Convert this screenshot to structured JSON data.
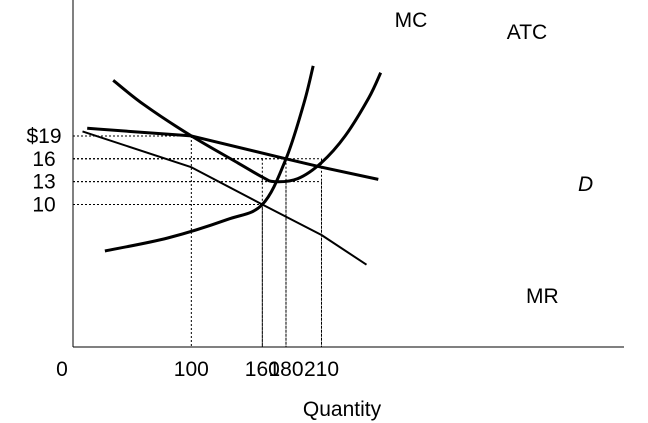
{
  "chart_data": {
    "type": "line",
    "title": "",
    "xlabel": "Quantity",
    "ylabel": "",
    "origin_label": "0",
    "grid": false,
    "x_ticks": [
      {
        "value": 100,
        "label": "100"
      },
      {
        "value": 160,
        "label": "160"
      },
      {
        "value": 180,
        "label": "180"
      },
      {
        "value": 210,
        "label": "210"
      }
    ],
    "y_ticks": [
      {
        "value": 19,
        "label": "$19"
      },
      {
        "value": 16,
        "label": "16"
      },
      {
        "value": 13,
        "label": "13"
      },
      {
        "value": 10,
        "label": "10"
      }
    ],
    "series": [
      {
        "name": "D",
        "label_style": "italic",
        "stroke": 3,
        "x": [
          12,
          100,
          180,
          210,
          258
        ],
        "y": [
          20.0,
          19.0,
          16.0,
          14.9,
          13.3
        ]
      },
      {
        "name": "MR",
        "label_style": "normal",
        "stroke": 2,
        "x": [
          8,
          100,
          160,
          210,
          248
        ],
        "y": [
          19.6,
          14.9,
          10.0,
          6.0,
          2.1
        ]
      },
      {
        "name": "MC",
        "label_style": "normal",
        "stroke": 3,
        "x": [
          27,
          80,
          130,
          160,
          180,
          195,
          203
        ],
        "y": [
          3.9,
          5.6,
          8.0,
          10.0,
          16.0,
          23.2,
          28.2
        ]
      },
      {
        "name": "ATC",
        "label_style": "normal",
        "stroke": 3,
        "x": [
          34,
          60,
          100,
          140,
          160,
          170,
          190,
          210,
          230,
          250,
          260
        ],
        "y": [
          26.3,
          23.1,
          19.0,
          15.4,
          13.6,
          13.0,
          13.4,
          15.5,
          19.0,
          24.0,
          27.3
        ]
      }
    ],
    "guides": [
      {
        "x": 100,
        "y": 19
      },
      {
        "x": 160,
        "y": 10
      },
      {
        "x": 160,
        "y": 16
      },
      {
        "x": 180,
        "y": 16
      },
      {
        "x": 180,
        "y": 13
      },
      {
        "x": 210,
        "y": 16
      },
      {
        "x": 210,
        "y": 13
      }
    ]
  }
}
